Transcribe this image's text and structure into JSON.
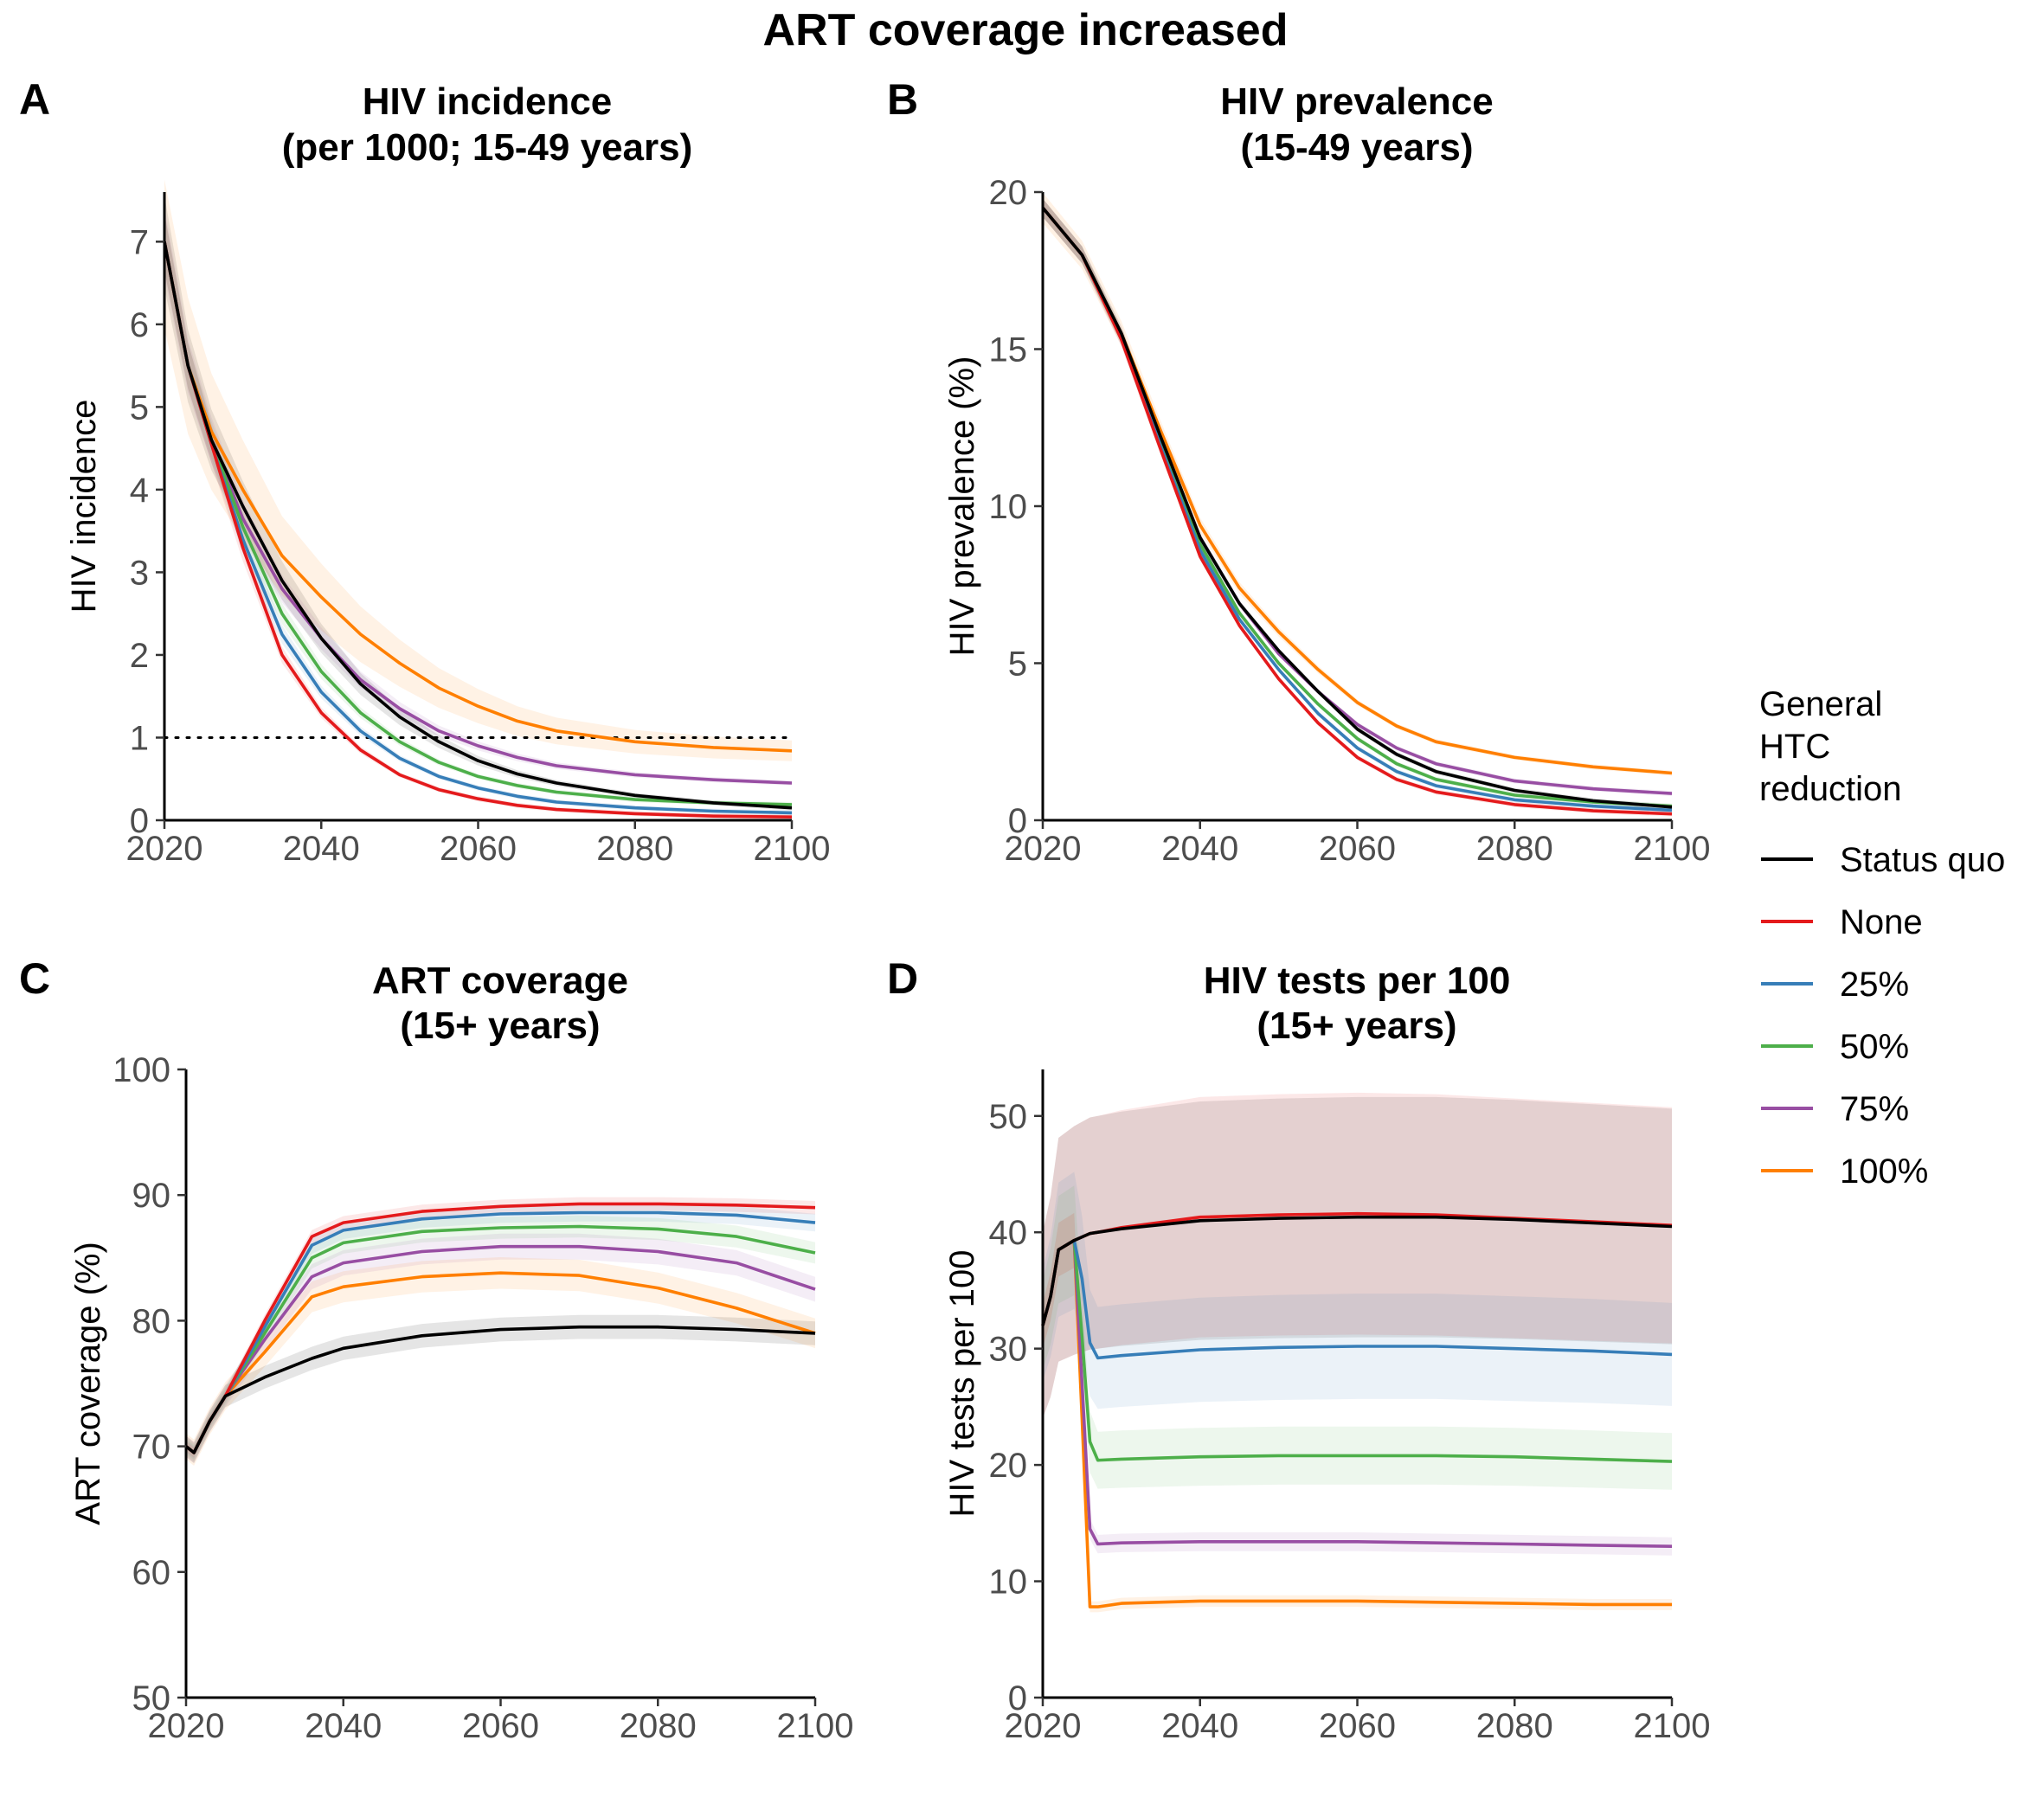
{
  "figure_title": "ART coverage increased",
  "legend": {
    "title_lines": [
      "General",
      "HTC",
      "reduction"
    ],
    "entries": [
      {
        "label": "Status quo",
        "color": "#000000"
      },
      {
        "label": "None",
        "color": "#e41a1c"
      },
      {
        "label": "25%",
        "color": "#377eb8"
      },
      {
        "label": "50%",
        "color": "#4daf4a"
      },
      {
        "label": "75%",
        "color": "#984ea3"
      },
      {
        "label": "100%",
        "color": "#ff7f00"
      }
    ]
  },
  "chart_data": [
    {
      "panel": "A",
      "type": "line",
      "title_lines": [
        "HIV incidence",
        "(per 1000; 15-49 years)"
      ],
      "xlabel": "",
      "ylabel": "HIV incidence",
      "xlim": [
        2020,
        2100
      ],
      "ylim": [
        0,
        7.6
      ],
      "xticks": [
        2020,
        2040,
        2060,
        2080,
        2100
      ],
      "yticks": [
        0,
        1,
        2,
        3,
        4,
        5,
        6,
        7
      ],
      "reference_line": {
        "y": 1,
        "style": "dotted",
        "x_range": [
          2020,
          2100
        ]
      },
      "x": [
        2020,
        2023,
        2026,
        2030,
        2035,
        2040,
        2045,
        2050,
        2055,
        2060,
        2065,
        2070,
        2080,
        2090,
        2100
      ],
      "series": [
        {
          "name": "Status quo",
          "color": "#000000",
          "band": 0.08,
          "values": [
            7.0,
            5.5,
            4.6,
            3.8,
            2.9,
            2.2,
            1.65,
            1.25,
            0.95,
            0.72,
            0.56,
            0.45,
            0.3,
            0.21,
            0.15
          ]
        },
        {
          "name": "None",
          "color": "#e41a1c",
          "band": 0.05,
          "values": [
            7.0,
            5.5,
            4.55,
            3.3,
            2.0,
            1.3,
            0.85,
            0.55,
            0.37,
            0.26,
            0.18,
            0.13,
            0.08,
            0.05,
            0.04
          ]
        },
        {
          "name": "25%",
          "color": "#377eb8",
          "band": 0.05,
          "values": [
            7.0,
            5.5,
            4.55,
            3.4,
            2.25,
            1.55,
            1.08,
            0.75,
            0.53,
            0.39,
            0.29,
            0.22,
            0.15,
            0.11,
            0.09
          ]
        },
        {
          "name": "50%",
          "color": "#4daf4a",
          "band": 0.05,
          "values": [
            7.0,
            5.5,
            4.6,
            3.55,
            2.5,
            1.8,
            1.3,
            0.95,
            0.7,
            0.53,
            0.42,
            0.34,
            0.25,
            0.21,
            0.19
          ]
        },
        {
          "name": "75%",
          "color": "#984ea3",
          "band": 0.06,
          "values": [
            7.0,
            5.5,
            4.6,
            3.65,
            2.8,
            2.2,
            1.7,
            1.35,
            1.08,
            0.9,
            0.76,
            0.66,
            0.55,
            0.49,
            0.45
          ]
        },
        {
          "name": "100%",
          "color": "#ff7f00",
          "band": 0.15,
          "values": [
            7.0,
            5.5,
            4.7,
            4.0,
            3.2,
            2.7,
            2.25,
            1.9,
            1.6,
            1.38,
            1.2,
            1.08,
            0.95,
            0.88,
            0.84
          ]
        }
      ]
    },
    {
      "panel": "B",
      "type": "line",
      "title_lines": [
        "HIV prevalence",
        "(15-49 years)"
      ],
      "xlabel": "",
      "ylabel": "HIV prevalence (%)",
      "xlim": [
        2020,
        2100
      ],
      "ylim": [
        0,
        20
      ],
      "xticks": [
        2020,
        2040,
        2060,
        2080,
        2100
      ],
      "yticks": [
        0,
        5,
        10,
        15,
        20
      ],
      "x": [
        2020,
        2025,
        2030,
        2035,
        2040,
        2045,
        2050,
        2055,
        2060,
        2065,
        2070,
        2080,
        2090,
        2100
      ],
      "series": [
        {
          "name": "Status quo",
          "color": "#000000",
          "band": 0.015,
          "values": [
            19.5,
            18.0,
            15.5,
            12.2,
            9.0,
            6.9,
            5.4,
            4.1,
            2.9,
            2.1,
            1.55,
            0.95,
            0.62,
            0.42
          ]
        },
        {
          "name": "None",
          "color": "#e41a1c",
          "band": 0.015,
          "values": [
            19.5,
            18.0,
            15.3,
            11.8,
            8.4,
            6.2,
            4.5,
            3.1,
            2.0,
            1.3,
            0.9,
            0.5,
            0.3,
            0.2
          ]
        },
        {
          "name": "25%",
          "color": "#377eb8",
          "band": 0.015,
          "values": [
            19.5,
            18.0,
            15.35,
            11.9,
            8.6,
            6.4,
            4.8,
            3.4,
            2.3,
            1.55,
            1.1,
            0.65,
            0.45,
            0.32
          ]
        },
        {
          "name": "50%",
          "color": "#4daf4a",
          "band": 0.015,
          "values": [
            19.5,
            18.0,
            15.4,
            12.0,
            8.8,
            6.6,
            5.0,
            3.7,
            2.6,
            1.8,
            1.3,
            0.8,
            0.58,
            0.45
          ]
        },
        {
          "name": "75%",
          "color": "#984ea3",
          "band": 0.015,
          "values": [
            19.5,
            18.0,
            15.45,
            12.15,
            9.0,
            6.9,
            5.3,
            4.1,
            3.05,
            2.3,
            1.8,
            1.25,
            1.0,
            0.85
          ]
        },
        {
          "name": "100%",
          "color": "#ff7f00",
          "band": 0.025,
          "values": [
            19.5,
            18.0,
            15.5,
            12.4,
            9.4,
            7.4,
            6.0,
            4.8,
            3.75,
            3.0,
            2.5,
            2.0,
            1.7,
            1.5
          ]
        }
      ]
    },
    {
      "panel": "C",
      "type": "line",
      "title_lines": [
        "ART coverage",
        "(15+ years)"
      ],
      "xlabel": "",
      "ylabel": "ART coverage (%)",
      "xlim": [
        2020,
        2100
      ],
      "ylim": [
        50,
        100
      ],
      "xticks": [
        2020,
        2040,
        2060,
        2080,
        2100
      ],
      "yticks": [
        50,
        60,
        70,
        80,
        90,
        100
      ],
      "x": [
        2020,
        2021,
        2023,
        2025,
        2030,
        2036,
        2040,
        2050,
        2060,
        2070,
        2080,
        2090,
        2100
      ],
      "series": [
        {
          "name": "Status quo",
          "color": "#000000",
          "band": 0.012,
          "values": [
            70.0,
            69.5,
            72.0,
            74.0,
            75.5,
            77.0,
            77.8,
            78.8,
            79.3,
            79.5,
            79.5,
            79.3,
            79.0
          ]
        },
        {
          "name": "None",
          "color": "#e41a1c",
          "band": 0.006,
          "values": [
            70.0,
            69.5,
            72.0,
            74.0,
            80.0,
            86.7,
            87.8,
            88.7,
            89.1,
            89.3,
            89.3,
            89.2,
            89.0
          ]
        },
        {
          "name": "25%",
          "color": "#377eb8",
          "band": 0.008,
          "values": [
            70.0,
            69.5,
            72.0,
            74.0,
            79.5,
            86.0,
            87.2,
            88.1,
            88.5,
            88.6,
            88.6,
            88.4,
            87.8
          ]
        },
        {
          "name": "50%",
          "color": "#4daf4a",
          "band": 0.01,
          "values": [
            70.0,
            69.5,
            72.0,
            74.0,
            79.0,
            85.0,
            86.2,
            87.1,
            87.4,
            87.5,
            87.3,
            86.7,
            85.4
          ]
        },
        {
          "name": "75%",
          "color": "#984ea3",
          "band": 0.012,
          "values": [
            70.0,
            69.5,
            72.0,
            74.0,
            78.5,
            83.5,
            84.6,
            85.5,
            85.9,
            85.9,
            85.5,
            84.6,
            82.5
          ]
        },
        {
          "name": "100%",
          "color": "#ff7f00",
          "band": 0.015,
          "values": [
            70.0,
            69.5,
            72.0,
            74.0,
            77.5,
            81.9,
            82.7,
            83.5,
            83.8,
            83.6,
            82.6,
            81.0,
            79.0
          ]
        }
      ]
    },
    {
      "panel": "D",
      "type": "line",
      "title_lines": [
        "HIV tests per 100",
        "(15+ years)"
      ],
      "xlabel": "",
      "ylabel": "HIV tests per 100",
      "xlim": [
        2020,
        2100
      ],
      "ylim": [
        0,
        54
      ],
      "xticks": [
        2020,
        2040,
        2060,
        2080,
        2100
      ],
      "yticks": [
        0,
        10,
        20,
        30,
        40,
        50
      ],
      "x": [
        2020,
        2021,
        2022,
        2024,
        2025,
        2026,
        2027,
        2030,
        2040,
        2050,
        2060,
        2070,
        2080,
        2090,
        2100
      ],
      "series": [
        {
          "name": "Status quo",
          "color": "#000000",
          "band": 0.25,
          "values": [
            32.0,
            34.5,
            38.5,
            39.3,
            39.6,
            39.9,
            40.0,
            40.3,
            41.0,
            41.2,
            41.3,
            41.3,
            41.1,
            40.8,
            40.5
          ]
        },
        {
          "name": "None",
          "color": "#e41a1c",
          "band": 0.25,
          "values": [
            32.0,
            34.5,
            38.5,
            39.3,
            39.6,
            39.9,
            40.0,
            40.4,
            41.3,
            41.5,
            41.6,
            41.5,
            41.2,
            40.9,
            40.6
          ]
        },
        {
          "name": "25%",
          "color": "#377eb8",
          "band": 0.15,
          "values": [
            32.0,
            34.5,
            38.5,
            39.3,
            36.0,
            30.5,
            29.2,
            29.4,
            29.9,
            30.1,
            30.2,
            30.2,
            30.0,
            29.8,
            29.5
          ]
        },
        {
          "name": "50%",
          "color": "#4daf4a",
          "band": 0.12,
          "values": [
            32.0,
            34.5,
            38.5,
            39.3,
            31.0,
            22.0,
            20.4,
            20.5,
            20.7,
            20.8,
            20.8,
            20.8,
            20.7,
            20.5,
            20.3
          ]
        },
        {
          "name": "75%",
          "color": "#984ea3",
          "band": 0.06,
          "values": [
            32.0,
            34.5,
            38.5,
            39.3,
            27.0,
            14.5,
            13.2,
            13.3,
            13.4,
            13.4,
            13.4,
            13.3,
            13.2,
            13.1,
            13.0
          ]
        },
        {
          "name": "100%",
          "color": "#ff7f00",
          "band": 0.06,
          "values": [
            32.0,
            34.5,
            38.5,
            39.3,
            24.0,
            7.8,
            7.8,
            8.1,
            8.3,
            8.3,
            8.3,
            8.2,
            8.1,
            8.0,
            8.0
          ]
        }
      ]
    }
  ]
}
